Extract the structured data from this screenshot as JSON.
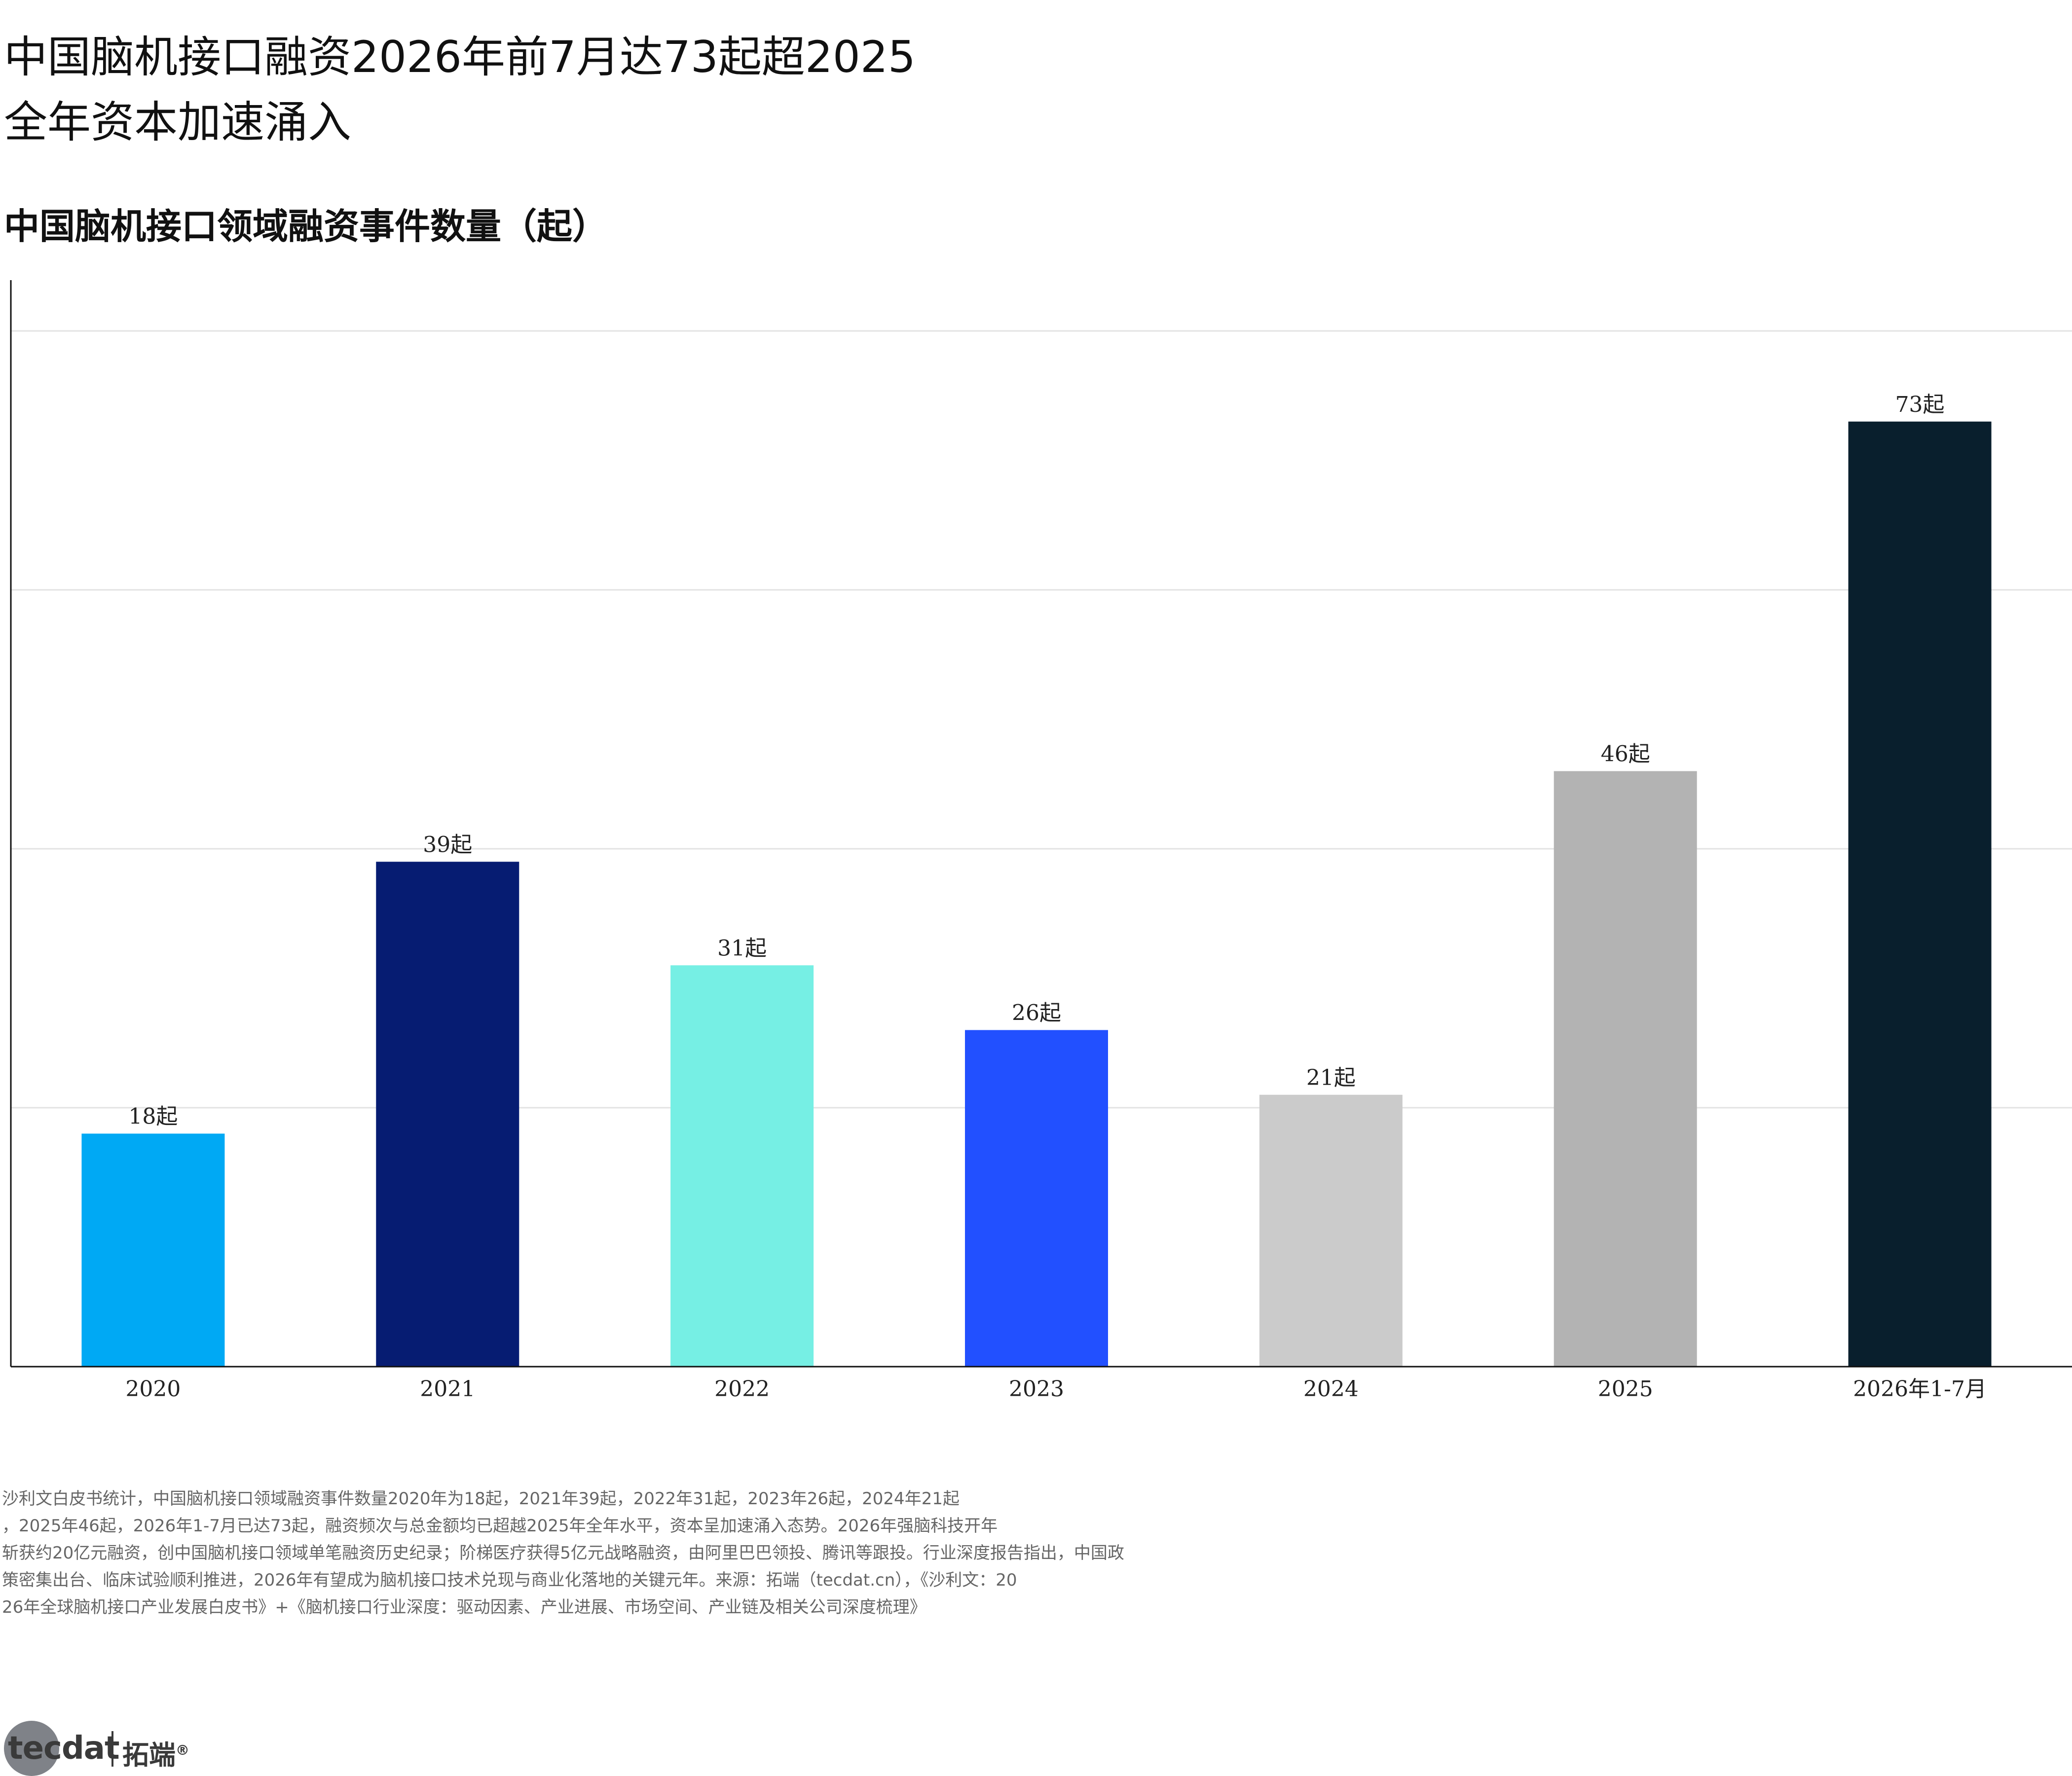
{
  "title_lines": [
    "中国脑机接口融资2026年前7月达73起超2025",
    "全年资本加速涌入"
  ],
  "subtitle": "中国脑机接口领域融资事件数量（起）",
  "chart_data": {
    "type": "bar",
    "categories": [
      "2020",
      "2021",
      "2022",
      "2023",
      "2024",
      "2025",
      "2026年1-7月"
    ],
    "values": [
      18,
      39,
      31,
      26,
      21,
      46,
      73
    ],
    "data_labels": [
      "18起",
      "39起",
      "31起",
      "26起",
      "21起",
      "46起",
      "73起"
    ],
    "colors": [
      "#00a9f4",
      "#061c72",
      "#76efe4",
      "#2250ff",
      "#cbcbcb",
      "#b3b3b3",
      "#091f2d"
    ],
    "ylim": [
      0,
      84
    ],
    "gridlines": [
      20,
      40,
      60,
      80
    ],
    "grid": true
  },
  "note_lines": [
    "沙利文白皮书统计，中国脑机接口领域融资事件数量2020年为18起，2021年39起，2022年31起，2023年26起，2024年21起",
    "，2025年46起，2026年1-7月已达73起，融资频次与总金额均已超越2025年全年水平，资本呈加速涌入态势。2026年强脑科技开年",
    "斩获约20亿元融资，创中国脑机接口领域单笔融资历史纪录；阶梯医疗获得5亿元战略融资，由阿里巴巴领投、腾讯等跟投。行业深度报告指出，中国政",
    "策密集出台、临床试验顺利推进，2026年有望成为脑机接口技术兑现与商业化落地的关键元年。来源：拓端（tecdat.cn），《沙利文：20",
    "26年全球脑机接口产业发展白皮书》+《脑机接口行业深度：驱动因素、产业进展、市场空间、产业链及相关公司深度梳理》"
  ],
  "logo": {
    "text": "tecdat",
    "cn": "拓端",
    "mark": "®"
  }
}
